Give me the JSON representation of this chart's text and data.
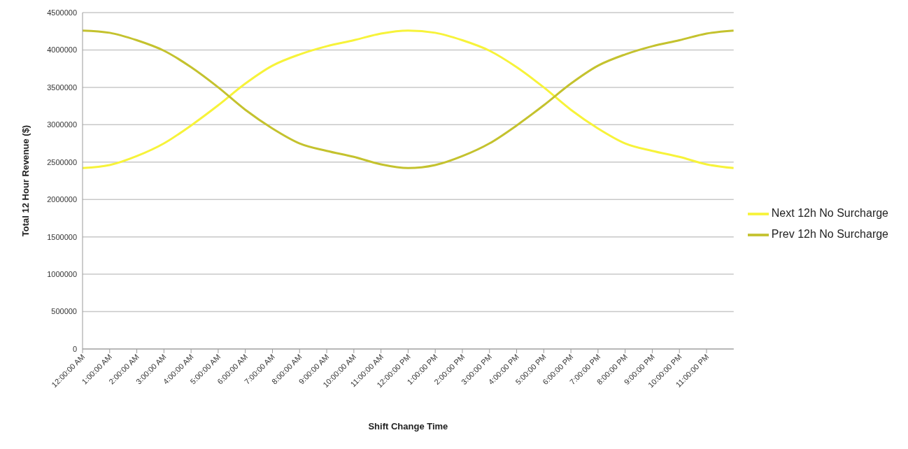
{
  "chart_data": {
    "type": "line",
    "xlabel": "Shift Change Time",
    "ylabel": "Total 12 Hour Revenue ($)",
    "x": [
      0,
      1,
      2,
      3,
      4,
      5,
      6,
      7,
      8,
      9,
      10,
      11,
      12,
      13,
      14,
      15,
      16,
      17,
      18,
      19,
      20,
      21,
      22,
      23,
      24
    ],
    "series": [
      {
        "name": "Next 12h No Surcharge",
        "color": "#f7f33a",
        "values": [
          2420000,
          2460000,
          2580000,
          2750000,
          2990000,
          3260000,
          3550000,
          3790000,
          3940000,
          4050000,
          4130000,
          4220000,
          4260000,
          4230000,
          4130000,
          3990000,
          3770000,
          3500000,
          3200000,
          2950000,
          2750000,
          2650000,
          2570000,
          2470000,
          2420000
        ]
      },
      {
        "name": "Prev 12h No Surcharge",
        "color": "#c4c22e",
        "values": [
          4260000,
          4230000,
          4130000,
          3990000,
          3770000,
          3500000,
          3200000,
          2950000,
          2750000,
          2650000,
          2570000,
          2470000,
          2420000,
          2460000,
          2580000,
          2750000,
          2990000,
          3260000,
          3550000,
          3790000,
          3940000,
          4050000,
          4130000,
          4220000,
          4260000
        ]
      }
    ],
    "xlim": [
      0,
      24
    ],
    "xticks": [
      {
        "value": 0,
        "label": "12:00:00 AM"
      },
      {
        "value": 1,
        "label": "1:00:00 AM"
      },
      {
        "value": 2,
        "label": "2:00:00 AM"
      },
      {
        "value": 3,
        "label": "3:00:00 AM"
      },
      {
        "value": 4,
        "label": "4:00:00 AM"
      },
      {
        "value": 5,
        "label": "5:00:00 AM"
      },
      {
        "value": 6,
        "label": "6:00:00 AM"
      },
      {
        "value": 7,
        "label": "7:00:00 AM"
      },
      {
        "value": 8,
        "label": "8:00:00 AM"
      },
      {
        "value": 9,
        "label": "9:00:00 AM"
      },
      {
        "value": 10,
        "label": "10:00:00 AM"
      },
      {
        "value": 11,
        "label": "11:00:00 AM"
      },
      {
        "value": 12,
        "label": "12:00:00 PM"
      },
      {
        "value": 13,
        "label": "1:00:00 PM"
      },
      {
        "value": 14,
        "label": "2:00:00 PM"
      },
      {
        "value": 15,
        "label": "3:00:00 PM"
      },
      {
        "value": 16,
        "label": "4:00:00 PM"
      },
      {
        "value": 17,
        "label": "5:00:00 PM"
      },
      {
        "value": 18,
        "label": "6:00:00 PM"
      },
      {
        "value": 19,
        "label": "7:00:00 PM"
      },
      {
        "value": 20,
        "label": "8:00:00 PM"
      },
      {
        "value": 21,
        "label": "9:00:00 PM"
      },
      {
        "value": 22,
        "label": "10:00:00 PM"
      },
      {
        "value": 23,
        "label": "11:00:00 PM"
      }
    ],
    "ylim": [
      0,
      4500000
    ],
    "yticks": [
      0,
      500000,
      1000000,
      1500000,
      2000000,
      2500000,
      3000000,
      3500000,
      4000000,
      4500000
    ],
    "grid": "y",
    "legend": "right"
  }
}
